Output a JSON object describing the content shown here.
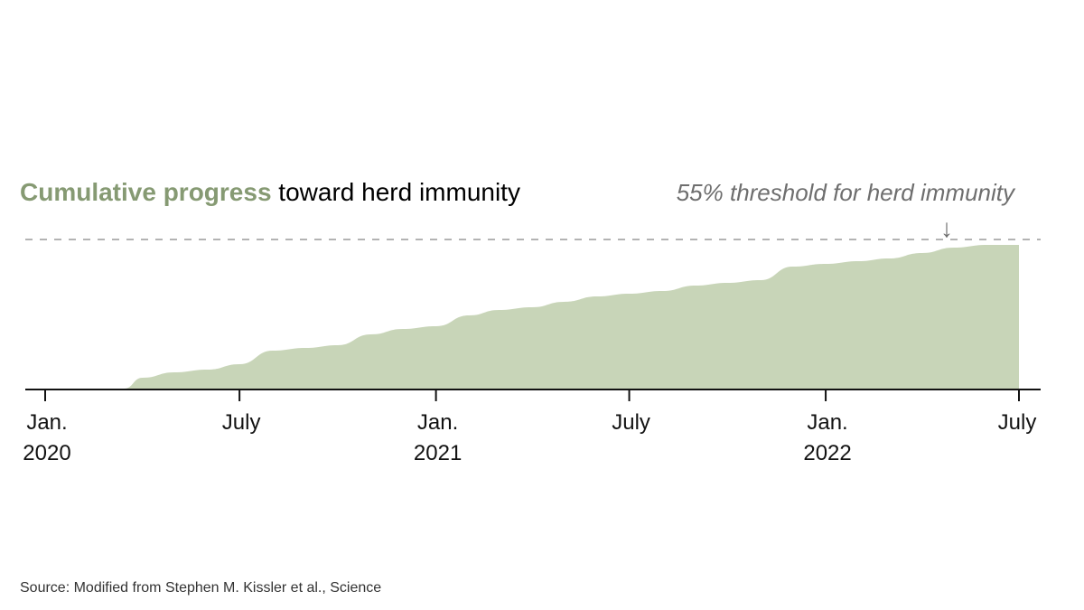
{
  "chart_data": {
    "type": "area",
    "title_highlight": "Cumulative progress",
    "title_rest": " toward herd immunity",
    "x_dates": [
      "2020-03-15",
      "2020-04-01",
      "2020-05-01",
      "2020-06-01",
      "2020-07-01",
      "2020-08-01",
      "2020-09-01",
      "2020-10-01",
      "2020-11-01",
      "2020-12-01",
      "2021-01-01",
      "2021-02-01",
      "2021-03-01",
      "2021-04-01",
      "2021-05-01",
      "2021-06-01",
      "2021-07-01",
      "2021-08-01",
      "2021-09-01",
      "2021-10-01",
      "2021-11-01",
      "2021-12-01",
      "2022-01-01",
      "2022-02-01",
      "2022-03-01",
      "2022-04-01",
      "2022-05-01",
      "2022-06-01",
      "2022-07-01"
    ],
    "values": [
      0,
      4,
      6,
      7,
      9,
      14,
      15,
      16,
      20,
      22,
      23,
      27,
      29,
      30,
      32,
      34,
      35,
      36,
      38,
      39,
      40,
      45,
      46,
      47,
      48,
      50,
      52,
      53,
      53
    ],
    "ylim": [
      0,
      60
    ],
    "xlim": [
      "2020-01-01",
      "2022-07-01"
    ],
    "threshold": {
      "value": 55,
      "label": "55% threshold for herd immunity",
      "arrow": "↓"
    },
    "ticks": [
      {
        "date": "2020-01-01",
        "label": [
          "Jan.",
          "2020"
        ]
      },
      {
        "date": "2020-07-01",
        "label": [
          "July"
        ]
      },
      {
        "date": "2021-01-01",
        "label": [
          "Jan.",
          "2021"
        ]
      },
      {
        "date": "2021-07-01",
        "label": [
          "July"
        ]
      },
      {
        "date": "2022-01-01",
        "label": [
          "Jan.",
          "2022"
        ]
      },
      {
        "date": "2022-07-01",
        "label": [
          "July"
        ]
      }
    ],
    "grid": false,
    "legend": "none"
  },
  "colors": {
    "highlight": "#869a73",
    "fill": "#c8d5b8",
    "axis": "#121212",
    "threshold": "#9a9a9a",
    "threshold_text": "#6e6e6e"
  },
  "source": "Source: Modified from Stephen M. Kissler et al., Science"
}
